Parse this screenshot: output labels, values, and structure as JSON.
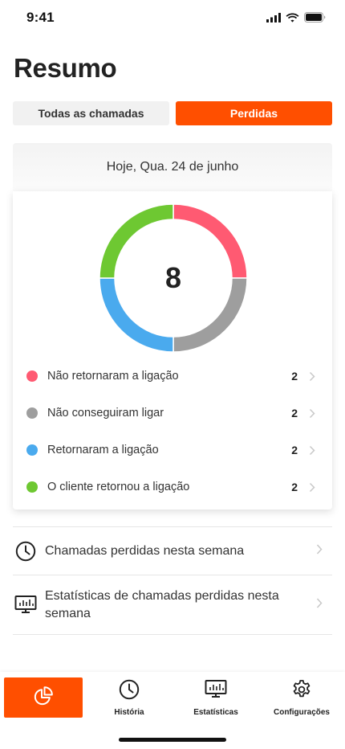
{
  "status_bar": {
    "time": "9:41"
  },
  "page": {
    "title": "Resumo"
  },
  "segments": [
    {
      "label": "Todas as chamadas",
      "active": false
    },
    {
      "label": "Perdidas",
      "active": true
    }
  ],
  "summary": {
    "date_label": "Hoje, Qua. 24 de junho",
    "total": "8",
    "items": [
      {
        "label": "Não retornaram a ligação",
        "count": 2,
        "color": "#ff5a72"
      },
      {
        "label": "Não conseguiram ligar",
        "count": 2,
        "color": "#9e9e9e"
      },
      {
        "label": "Retornaram a ligação",
        "count": 2,
        "color": "#4aaaee"
      },
      {
        "label": "O cliente retornou a ligação",
        "count": 2,
        "color": "#6ec832"
      }
    ]
  },
  "links": [
    {
      "icon": "clock-icon",
      "label": "Chamadas perdidas nesta semana"
    },
    {
      "icon": "chart-monitor-icon",
      "label": "Estatísticas de chamadas perdidas nesta semana"
    }
  ],
  "tabs": [
    {
      "icon": "pie-chart-icon",
      "label": "",
      "active": true
    },
    {
      "icon": "clock-icon",
      "label": "História",
      "active": false
    },
    {
      "icon": "chart-monitor-icon",
      "label": "Estatísticas",
      "active": false
    },
    {
      "icon": "gear-icon",
      "label": "Configurações",
      "active": false
    }
  ],
  "colors": {
    "accent": "#ff4f00"
  }
}
